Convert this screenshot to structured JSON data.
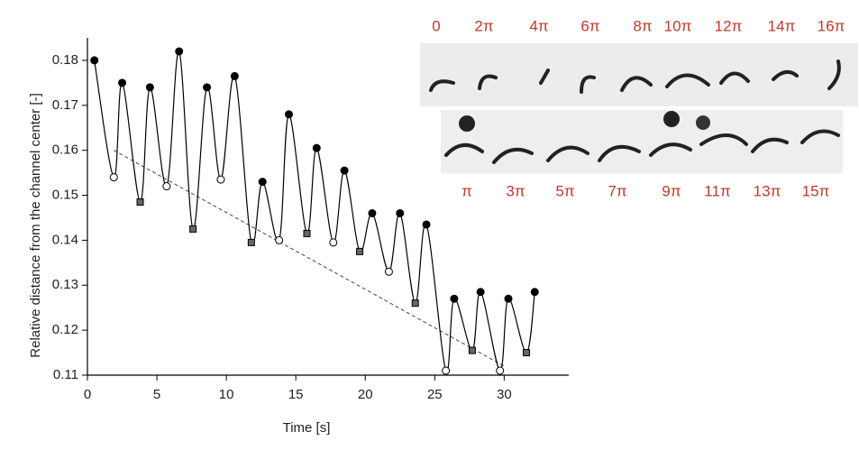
{
  "chart_data": {
    "type": "line",
    "xlabel": "Time [s]",
    "ylabel": "Relative distance from the channel center [-]",
    "xlim": [
      0,
      34
    ],
    "ylim": [
      0.11,
      0.185
    ],
    "xticks": [
      0,
      5,
      10,
      15,
      20,
      25,
      30
    ],
    "yticks": [
      0.11,
      0.12,
      0.13,
      0.14,
      0.15,
      0.16,
      0.17,
      0.18
    ],
    "series": [
      {
        "color": "#000000",
        "x": [
          0.5,
          1.9,
          2.5,
          3.8,
          4.5,
          5.7,
          6.6,
          7.6,
          8.6,
          9.6,
          10.6,
          11.8,
          12.6,
          13.8,
          14.5,
          15.8,
          16.5,
          17.7,
          18.5,
          19.6,
          20.5,
          21.7,
          22.5,
          23.6,
          24.4,
          25.8,
          26.4,
          27.7,
          28.3,
          29.7,
          30.3,
          31.6,
          32.2
        ],
        "values": [
          0.18,
          0.154,
          0.175,
          0.1485,
          0.174,
          0.152,
          0.182,
          0.1425,
          0.174,
          0.1535,
          0.1765,
          0.1395,
          0.153,
          0.14,
          0.168,
          0.1415,
          0.1605,
          0.1395,
          0.1555,
          0.1375,
          0.146,
          0.133,
          0.146,
          0.126,
          0.1435,
          0.111,
          0.127,
          0.1155,
          0.1285,
          0.111,
          0.127,
          0.115,
          0.1285
        ],
        "markers": [
          "filled",
          "open",
          "filled",
          "square",
          "filled",
          "open",
          "filled",
          "square",
          "filled",
          "open",
          "filled",
          "square",
          "filled",
          "open",
          "filled",
          "square",
          "filled",
          "open",
          "filled",
          "square",
          "filled",
          "open",
          "filled",
          "square",
          "filled",
          "open",
          "filled",
          "square",
          "filled",
          "open",
          "filled",
          "square",
          "filled"
        ]
      }
    ],
    "trend": {
      "x": [
        1.9,
        30
      ],
      "values": [
        0.16,
        0.112
      ]
    }
  },
  "inset": {
    "top_labels": [
      "0",
      "2π",
      "4π",
      "6π",
      "8π",
      "10π",
      "12π",
      "14π",
      "16π"
    ],
    "bottom_labels": [
      "π",
      "3π",
      "5π",
      "7π",
      "9π",
      "11π",
      "13π",
      "15π"
    ]
  }
}
